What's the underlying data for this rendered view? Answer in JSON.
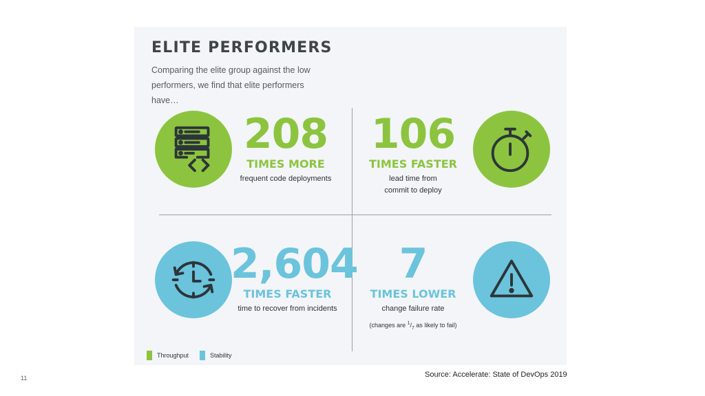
{
  "slide": {
    "title": "ELITE PERFORMERS",
    "subtitle": "Comparing the elite group against the low performers, we find that elite performers have…",
    "page_number": "11",
    "source": "Source: Accelerate: State of DevOps 2019"
  },
  "colors": {
    "throughput": "#8cc43f",
    "stability": "#6cc3dc"
  },
  "stats": [
    {
      "number": "208",
      "unit": "TIMES MORE",
      "description": "frequent code deployments",
      "icon": "server-code-icon",
      "category": "throughput"
    },
    {
      "number": "106",
      "unit": "TIMES FASTER",
      "description": "lead time from commit to deploy",
      "icon": "stopwatch-icon",
      "category": "throughput"
    },
    {
      "number": "2,604",
      "unit": "TIMES FASTER",
      "description": "time to recover from incidents",
      "icon": "clock-recovery-icon",
      "category": "stability"
    },
    {
      "number": "7",
      "unit": "TIMES LOWER",
      "description": "change failure rate",
      "note_prefix": "(changes are ",
      "note_fraction_num": "1",
      "note_fraction_den": "7",
      "note_suffix": " as likely to fail)",
      "icon": "warning-icon",
      "category": "stability"
    }
  ],
  "legend": [
    {
      "label": "Throughput",
      "color": "#8cc43f"
    },
    {
      "label": "Stability",
      "color": "#6cc3dc"
    }
  ]
}
